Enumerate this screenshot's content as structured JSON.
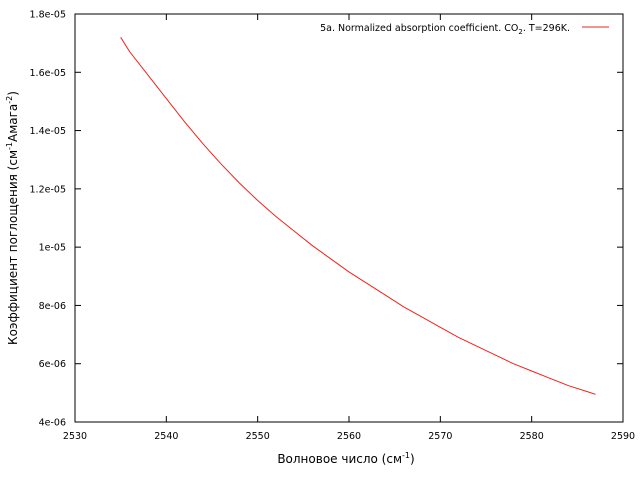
{
  "chart_data": {
    "type": "line",
    "title": "",
    "xlabel": {
      "main": "Волновое число (см",
      "sup": "-1",
      "tail": ")"
    },
    "ylabel": {
      "main": "Коэффициент поглощения (см",
      "sup1": "-1",
      "mid": "Амага",
      "sup2": "-2",
      "tail": ")"
    },
    "xlim": [
      2530,
      2590
    ],
    "ylim": [
      4e-06,
      1.8e-05
    ],
    "xticks": [
      2530,
      2540,
      2550,
      2560,
      2570,
      2580,
      2590
    ],
    "xtick_labels": [
      "2530",
      "2540",
      "2550",
      "2560",
      "2570",
      "2580",
      "2590"
    ],
    "yticks": [
      4e-06,
      6e-06,
      8e-06,
      1e-05,
      1.2e-05,
      1.4e-05,
      1.6e-05,
      1.8e-05
    ],
    "ytick_labels": [
      "4e-06",
      "6e-06",
      "8e-06",
      "1e-05",
      "1.2e-05",
      "1.4e-05",
      "1.6e-05",
      "1.8e-05"
    ],
    "grid": false,
    "legend": {
      "placement": "top-right",
      "label_main": "5a. Normalized absorption coefficient. CO",
      "label_sub": "2",
      "label_tail": ". T=296K."
    },
    "series": [
      {
        "color": "#e8271f",
        "x": [
          2535,
          2536,
          2538,
          2540,
          2542,
          2544,
          2546,
          2548,
          2550,
          2552,
          2554,
          2556,
          2558,
          2560,
          2562,
          2564,
          2566,
          2568,
          2570,
          2572,
          2574,
          2576,
          2578,
          2580,
          2582,
          2584,
          2586,
          2587
        ],
        "y": [
          1.72e-05,
          1.67e-05,
          1.59e-05,
          1.51e-05,
          1.43e-05,
          1.355e-05,
          1.285e-05,
          1.22e-05,
          1.16e-05,
          1.105e-05,
          1.055e-05,
          1.005e-05,
          9.6e-06,
          9.15e-06,
          8.75e-06,
          8.35e-06,
          7.95e-06,
          7.6e-06,
          7.25e-06,
          6.9e-06,
          6.6e-06,
          6.3e-06,
          6e-06,
          5.75e-06,
          5.5e-06,
          5.25e-06,
          5.05e-06,
          4.95e-06
        ]
      }
    ]
  }
}
